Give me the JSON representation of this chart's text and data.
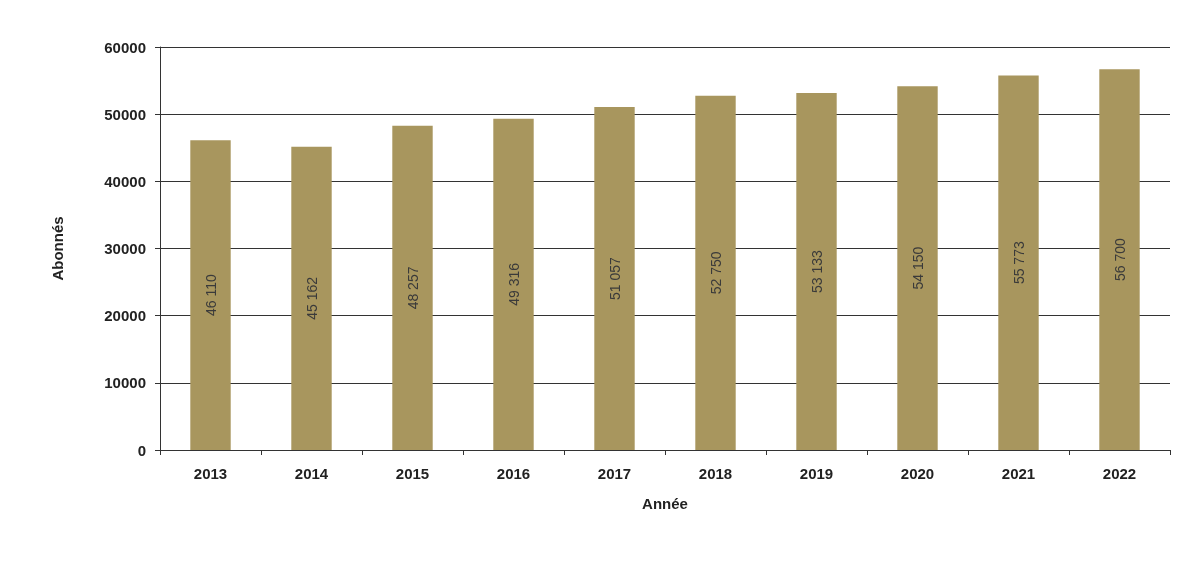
{
  "chart_data": {
    "type": "bar",
    "xlabel": "Année",
    "ylabel": "Abonnés",
    "categories": [
      "2013",
      "2014",
      "2015",
      "2016",
      "2017",
      "2018",
      "2019",
      "2020",
      "2021",
      "2022"
    ],
    "values": [
      46110,
      45162,
      48257,
      49316,
      51057,
      52750,
      53133,
      54150,
      55773,
      56700
    ],
    "value_labels": [
      "46 110",
      "45 162",
      "48 257",
      "49 316",
      "51 057",
      "52 750",
      "53 133",
      "54 150",
      "55 773",
      "56 700"
    ],
    "color": "#a8965e",
    "ylim": [
      0,
      60000
    ],
    "yticks": [
      0,
      10000,
      20000,
      30000,
      40000,
      50000,
      60000
    ],
    "grid": "y"
  }
}
